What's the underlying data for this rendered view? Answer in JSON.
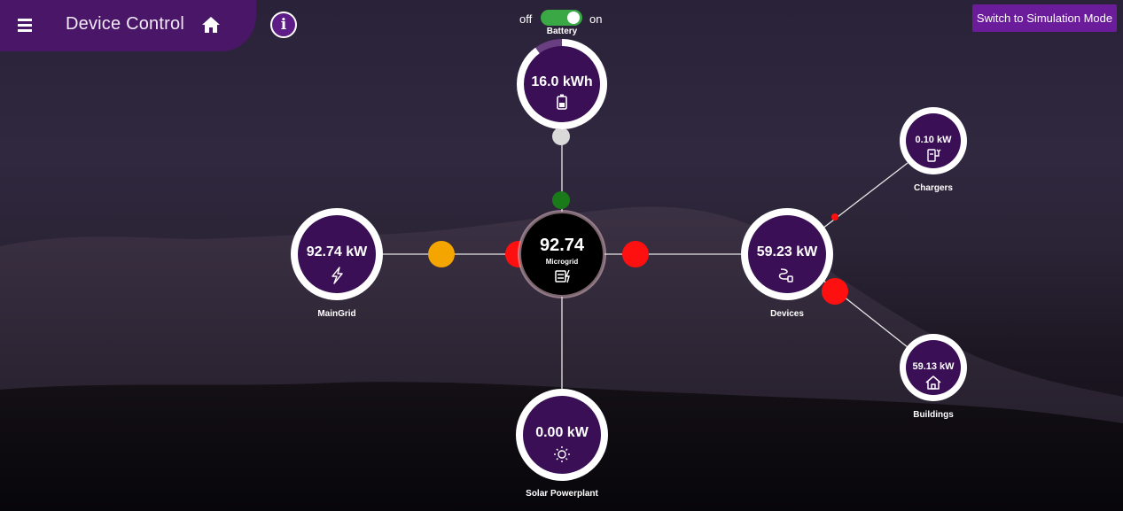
{
  "header": {
    "title": "Device Control",
    "menu_icon": "hamburger-menu-icon",
    "home_icon": "home-icon",
    "info_icon": "info-icon",
    "info_glyph": "i"
  },
  "simulation_button": {
    "label": "Switch to Simulation Mode"
  },
  "battery_toggle": {
    "off_label": "off",
    "on_label": "on",
    "state": "on"
  },
  "nodes": {
    "battery": {
      "label": "Battery",
      "value": "16.0 kWh",
      "icon": "battery-icon",
      "charge_fraction": 0.9
    },
    "microgrid": {
      "label": "Microgrid",
      "value": "92.74",
      "icon": "microgrid-icon"
    },
    "maingrid": {
      "label": "MainGrid",
      "value": "92.74 kW",
      "icon": "lightning-icon"
    },
    "devices": {
      "label": "Devices",
      "value": "59.23 kW",
      "icon": "plug-icon"
    },
    "chargers": {
      "label": "Chargers",
      "value": "0.10 kW",
      "icon": "ev-charger-icon"
    },
    "buildings": {
      "label": "Buildings",
      "value": "59.13 kW",
      "icon": "house-icon"
    },
    "solar": {
      "label": "Solar Powerplant",
      "value": "0.00 kW",
      "icon": "sun-icon"
    }
  },
  "flow_indicators": {
    "battery_top": "#d9d9d9",
    "battery_bottom": "#1a7a1a",
    "maingrid": "#f5a500",
    "microgrid_left": "#ff1010",
    "microgrid_right": "#ff1010",
    "chargers": "#ff1010",
    "buildings": "#ff1010"
  },
  "colors": {
    "header": "#4a1668",
    "node_fill": "#3a0f55",
    "accent": "#6b1c9a",
    "toggle_on": "#3aa845"
  }
}
